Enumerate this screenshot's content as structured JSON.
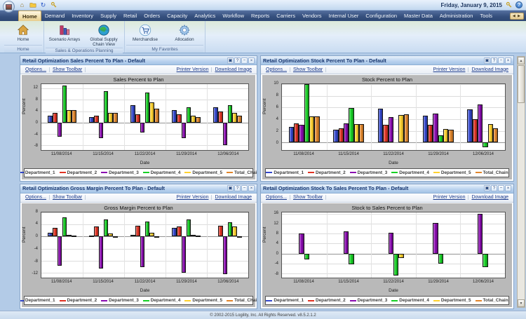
{
  "window": {
    "date": "Friday, January 9, 2015"
  },
  "menu": {
    "items": [
      "Home",
      "Demand",
      "Inventory",
      "Supply",
      "Retail",
      "Orders",
      "Capacity",
      "Analytics",
      "Workflow",
      "Reports",
      "Carriers",
      "Vendors",
      "Internal User",
      "Configuration",
      "Master Data",
      "Administration",
      "Tools"
    ],
    "selected": "Home"
  },
  "ribbon": {
    "groups": [
      {
        "label": "Home",
        "buttons": [
          {
            "label": "Home",
            "icon": "home-icon"
          }
        ]
      },
      {
        "label": "Sales & Operations Planning",
        "buttons": [
          {
            "label": "Scenario Arrays",
            "icon": "scenario-arrays-icon"
          },
          {
            "label": "Global Supply Chain View",
            "icon": "globe-icon"
          }
        ]
      },
      {
        "label": "My Favorites",
        "buttons": [
          {
            "label": "Merchandise",
            "icon": "cart-icon"
          },
          {
            "label": "Allocation",
            "icon": "allocation-icon"
          }
        ]
      }
    ]
  },
  "panel_toolbar": {
    "options": "Options...",
    "show_toolbar": "Show Toolbar",
    "printer_version": "Printer Version",
    "download_image": "Download Image"
  },
  "panel_header_icons": [
    "window-icon",
    "help-icon",
    "collapse-icon",
    "close-icon"
  ],
  "panels": [
    {
      "title": "Retail Optimization Sales Percent To Plan - Default"
    },
    {
      "title": "Retail Optimization Stock Percent To Plan - Default"
    },
    {
      "title": "Retail Optimization Gross Margin Percent To Plan - Default"
    },
    {
      "title": "Retail Optimization Stock To Sales Percent To Plan - Default"
    }
  ],
  "chart_data": [
    {
      "type": "bar",
      "title": "Sales Percent to Plan",
      "xlabel": "Date",
      "ylabel": "Percent",
      "categories": [
        "11/08/2014",
        "11/15/2014",
        "11/22/2014",
        "11/29/2014",
        "12/06/2014"
      ],
      "yticks": [
        -8,
        -4,
        0,
        4,
        8,
        12
      ],
      "ylim": [
        -9.5,
        13.5
      ],
      "grid": true,
      "legend_position": "bottom",
      "series": [
        {
          "name": "Department_1",
          "color": "#3347cc",
          "values": [
            2.5,
            2.0,
            6.0,
            4.5,
            5.5
          ]
        },
        {
          "name": "Department_2",
          "color": "#e03323",
          "values": [
            3.5,
            2.5,
            3.0,
            3.0,
            4.0
          ]
        },
        {
          "name": "Department_3",
          "color": "#8a0bb0",
          "values": [
            -5.0,
            -5.5,
            -3.5,
            -5.5,
            -8.0
          ]
        },
        {
          "name": "Department_4",
          "color": "#16d024",
          "values": [
            13.0,
            11.0,
            10.5,
            5.5,
            6.0
          ]
        },
        {
          "name": "Department_5",
          "color": "#ffd22e",
          "values": [
            4.5,
            3.5,
            7.0,
            2.5,
            3.5
          ]
        },
        {
          "name": "Total_Chain",
          "color": "#e2862b",
          "values": [
            4.5,
            3.5,
            5.0,
            2.0,
            2.5
          ]
        }
      ]
    },
    {
      "type": "bar",
      "title": "Stock Percent to Plan",
      "xlabel": "Date",
      "ylabel": "Percent",
      "categories": [
        "11/08/2014",
        "11/15/2014",
        "11/22/2014",
        "11/29/2014",
        "12/06/2014"
      ],
      "yticks": [
        0,
        2,
        4,
        6,
        8,
        10
      ],
      "ylim": [
        -1.2,
        10
      ],
      "grid": true,
      "legend_position": "bottom",
      "series": [
        {
          "name": "Department_1",
          "color": "#3347cc",
          "values": [
            2.7,
            2.2,
            5.8,
            4.6,
            5.7
          ]
        },
        {
          "name": "Department_2",
          "color": "#e03323",
          "values": [
            3.3,
            2.5,
            3.1,
            3.0,
            4.0
          ]
        },
        {
          "name": "Department_3",
          "color": "#8a0bb0",
          "values": [
            3.0,
            3.3,
            4.4,
            5.0,
            6.5
          ]
        },
        {
          "name": "Department_4",
          "color": "#16d024",
          "values": [
            10.0,
            5.9,
            0,
            1.3,
            -0.8
          ]
        },
        {
          "name": "Department_5",
          "color": "#ffd22e",
          "values": [
            4.5,
            3.2,
            4.7,
            2.3,
            3.2
          ]
        },
        {
          "name": "Total_Chain",
          "color": "#e2862b",
          "values": [
            4.5,
            3.2,
            4.8,
            2.2,
            2.4
          ]
        }
      ]
    },
    {
      "type": "bar",
      "title": "Gross Margin Percent to Plan",
      "xlabel": "Date",
      "ylabel": "Percent",
      "categories": [
        "11/08/2014",
        "11/15/2014",
        "11/22/2014",
        "11/29/2014",
        "12/06/2014"
      ],
      "yticks": [
        -12,
        -8,
        -4,
        0,
        4,
        8
      ],
      "ylim": [
        -13.5,
        8
      ],
      "grid": true,
      "legend_position": "bottom",
      "series": [
        {
          "name": "Department_1",
          "color": "#3347cc",
          "values": [
            1.3,
            0.2,
            0.5,
            2.8,
            0
          ]
        },
        {
          "name": "Department_2",
          "color": "#e03323",
          "values": [
            2.8,
            3.2,
            3.6,
            3.2,
            3.6
          ]
        },
        {
          "name": "Department_3",
          "color": "#8a0bb0",
          "values": [
            -9.5,
            -10.5,
            -10.0,
            -12.0,
            -12.3
          ]
        },
        {
          "name": "Department_4",
          "color": "#16d024",
          "values": [
            6.2,
            5.6,
            5.0,
            5.7,
            4.6
          ]
        },
        {
          "name": "Department_5",
          "color": "#ffd22e",
          "values": [
            0.5,
            0.9,
            1.2,
            0.5,
            3.2
          ]
        },
        {
          "name": "Total_Chain",
          "color": "#e2862b",
          "values": [
            0.4,
            0.1,
            -0.2,
            0.2,
            -0.1
          ]
        }
      ]
    },
    {
      "type": "bar",
      "title": "Stock to Sales Percent to Plan",
      "xlabel": "Date",
      "ylabel": "Percent",
      "categories": [
        "11/08/2014",
        "11/15/2014",
        "11/22/2014",
        "11/29/2014",
        "12/06/2014"
      ],
      "yticks": [
        -8,
        -4,
        0,
        4,
        8,
        12,
        16
      ],
      "ylim": [
        -9.8,
        16.8
      ],
      "grid": true,
      "legend_position": "bottom",
      "series": [
        {
          "name": "Department_1",
          "color": "#3347cc",
          "values": [
            0,
            0,
            0,
            0,
            0
          ]
        },
        {
          "name": "Department_2",
          "color": "#e03323",
          "values": [
            0,
            0,
            0,
            0,
            0
          ]
        },
        {
          "name": "Department_3",
          "color": "#8a0bb0",
          "values": [
            8.0,
            9.0,
            8.5,
            12.5,
            16.0
          ]
        },
        {
          "name": "Department_4",
          "color": "#16d024",
          "values": [
            -2.5,
            -4.3,
            -9.0,
            -4.0,
            -5.5
          ]
        },
        {
          "name": "Department_5",
          "color": "#ffd22e",
          "values": [
            0,
            0,
            -1.8,
            0,
            0
          ]
        },
        {
          "name": "Total_Chain",
          "color": "#e2862b",
          "values": [
            0,
            0,
            0,
            0,
            0
          ]
        }
      ]
    }
  ],
  "footer": {
    "copyright": "© 2002-2015 Logility, Inc. All Rights Reserved. v8.5.2.1.2"
  },
  "colors": {
    "accent_blue": "#36507e",
    "panel_title": "#15346e",
    "link": "#1a3a8c"
  }
}
